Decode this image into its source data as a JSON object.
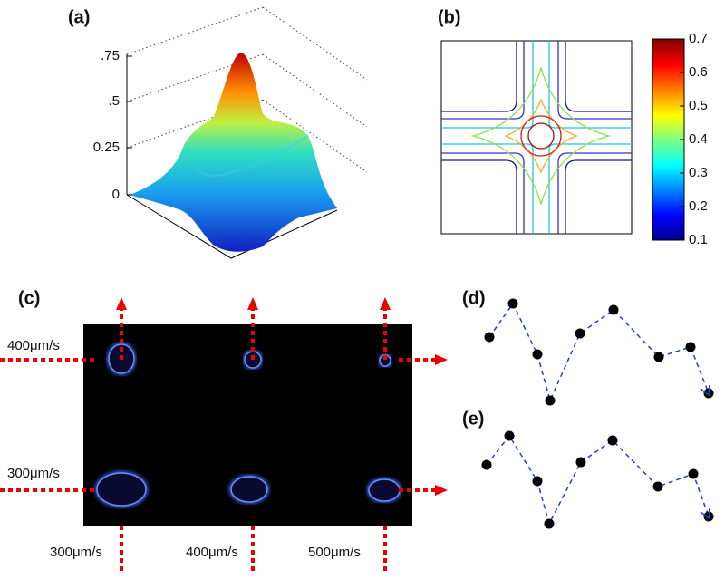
{
  "panels": [
    {
      "label": "(a)",
      "ticks": [
        ".75",
        ".5",
        "0.25",
        "0"
      ]
    },
    {
      "label": "(b)",
      "colorbar_ticks": [
        "0.7",
        "0.6",
        "0.5",
        "0.4",
        "0.3",
        "0.2",
        "0.1"
      ]
    },
    {
      "label": "(c)",
      "row_labels": [
        "400μm/s",
        "300μm/s"
      ],
      "column_labels": [
        "300μm/s",
        "400μm/s",
        "500μm/s"
      ]
    },
    {
      "label": "(d)"
    },
    {
      "label": "(e)"
    }
  ]
}
